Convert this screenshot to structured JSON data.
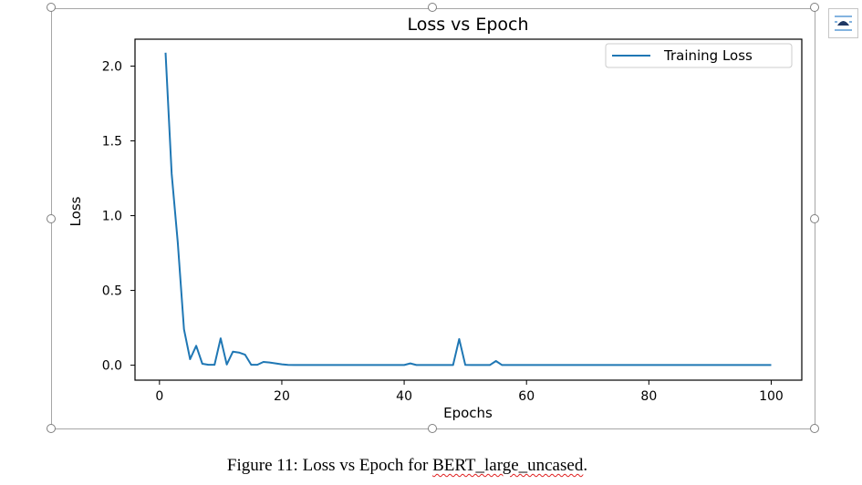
{
  "chart_data": {
    "type": "line",
    "title": "Loss vs Epoch",
    "xlabel": "Epochs",
    "ylabel": "Loss",
    "xlim": [
      -4,
      105
    ],
    "ylim": [
      -0.1,
      2.18
    ],
    "xticks": [
      "0",
      "20",
      "40",
      "60",
      "80",
      "100"
    ],
    "yticks": [
      "0.0",
      "0.5",
      "1.0",
      "1.5",
      "2.0"
    ],
    "grid": false,
    "legend_position": "top-right",
    "series": [
      {
        "name": "Training Loss",
        "color": "#1f77b4",
        "x": [
          1,
          2,
          3,
          4,
          5,
          6,
          7,
          8,
          9,
          10,
          11,
          12,
          13,
          14,
          15,
          16,
          17,
          18,
          19,
          20,
          21,
          22,
          23,
          24,
          25,
          26,
          27,
          28,
          29,
          30,
          31,
          32,
          33,
          34,
          35,
          36,
          37,
          38,
          39,
          40,
          41,
          42,
          43,
          44,
          45,
          46,
          47,
          48,
          49,
          50,
          51,
          52,
          53,
          54,
          55,
          56,
          57,
          58,
          59,
          60,
          61,
          62,
          63,
          64,
          65,
          66,
          67,
          68,
          69,
          70,
          71,
          72,
          73,
          74,
          75,
          76,
          77,
          78,
          79,
          80,
          81,
          82,
          83,
          84,
          85,
          86,
          87,
          88,
          89,
          90,
          91,
          92,
          93,
          94,
          95,
          96,
          97,
          98,
          99,
          100
        ],
        "y": [
          2.09,
          1.28,
          0.82,
          0.24,
          0.04,
          0.13,
          0.01,
          0.003,
          0.003,
          0.18,
          0.005,
          0.09,
          0.085,
          0.07,
          0.003,
          0.003,
          0.022,
          0.018,
          0.012,
          0.006,
          0.002,
          0.001,
          0.001,
          0.001,
          0.001,
          0.001,
          0.001,
          0.001,
          0.001,
          0.001,
          0.001,
          0.001,
          0.001,
          0.001,
          0.001,
          0.001,
          0.001,
          0.001,
          0.001,
          0.001,
          0.012,
          0.001,
          0.001,
          0.001,
          0.001,
          0.001,
          0.001,
          0.001,
          0.175,
          0.002,
          0.001,
          0.001,
          0.001,
          0.001,
          0.028,
          0.001,
          0.001,
          0.001,
          0.001,
          0.001,
          0.001,
          0.001,
          0.001,
          0.001,
          0.001,
          0.001,
          0.001,
          0.001,
          0.001,
          0.001,
          0.001,
          0.001,
          0.001,
          0.001,
          0.001,
          0.001,
          0.001,
          0.001,
          0.001,
          0.001,
          0.001,
          0.001,
          0.001,
          0.001,
          0.001,
          0.001,
          0.001,
          0.001,
          0.001,
          0.001,
          0.001,
          0.001,
          0.001,
          0.001,
          0.001,
          0.001,
          0.001,
          0.001,
          0.001,
          0.001
        ]
      }
    ]
  },
  "caption": {
    "prefix": "Figure 11: Loss vs Epoch for ",
    "model_name": "BERT_large_uncased",
    "suffix": "."
  },
  "layout_options_icon": "layout-options-icon"
}
